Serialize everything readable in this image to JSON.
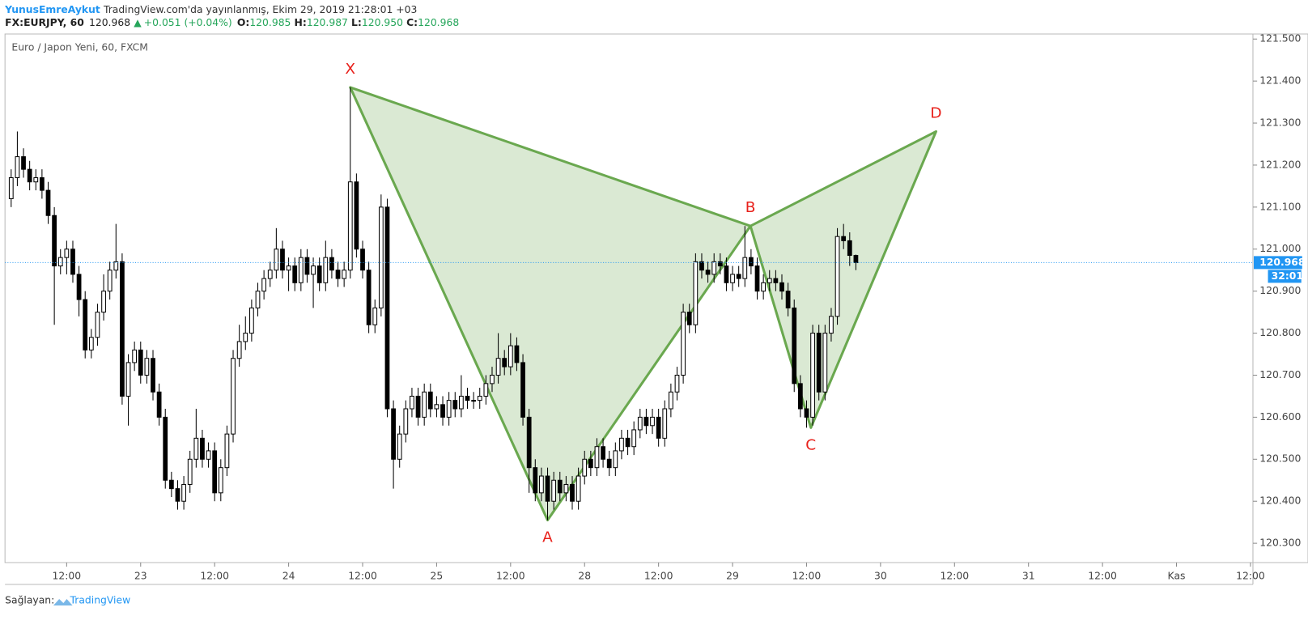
{
  "header": {
    "author": "YunusEmreAykut",
    "published": "TradingView.com'da yayınlanmış, Ekim 29, 2019 21:28:01 +03",
    "symbol": "FX:EURJPY, 60",
    "price": "120.968",
    "arrow": "▲",
    "change": "+0.051 (+0.04%)",
    "o_label": "O:",
    "o": "120.985",
    "h_label": "H:",
    "h": "120.987",
    "l_label": "L:",
    "l": "120.950",
    "c_label": "C:",
    "c": "120.968"
  },
  "footer": {
    "prefix": "Sağlayan:",
    "brand": "TradingView"
  },
  "chart_data": {
    "type": "candlestick",
    "title": "Euro / Japon Yeni, 60, FXCM",
    "up_color": "#ffffff",
    "down_color": "#000000",
    "pattern_color": "#6aa84f",
    "label_color": "#e8211b",
    "x": [
      0,
      1,
      2,
      3,
      4,
      5,
      6,
      7,
      8,
      9,
      10,
      11,
      12,
      13,
      14,
      15,
      16,
      17,
      18,
      19,
      20,
      21,
      22,
      23,
      24,
      25,
      26,
      27,
      28,
      29,
      30,
      31,
      32,
      33,
      34,
      35,
      36,
      37,
      38,
      39,
      40,
      41,
      42,
      43,
      44,
      45,
      46,
      47,
      48,
      49,
      50,
      51,
      52,
      53,
      54,
      55,
      56,
      57,
      58,
      59,
      60,
      61,
      62,
      63,
      64,
      65,
      66,
      67,
      68,
      69,
      70,
      71,
      72,
      73,
      74,
      75,
      76,
      77,
      78,
      79,
      80,
      81,
      82,
      83,
      84,
      85,
      86,
      87,
      88,
      89,
      90,
      91,
      92,
      93,
      94,
      95,
      96,
      97,
      98,
      99,
      100,
      101,
      102,
      103,
      104,
      105,
      106,
      107,
      108,
      109,
      110,
      111,
      112,
      113,
      114,
      115,
      116,
      117,
      118,
      119,
      120,
      121,
      122,
      123,
      124,
      125,
      126,
      127,
      128,
      129,
      130,
      131,
      132,
      133,
      134,
      135,
      136,
      137
    ],
    "open": [
      121.12,
      121.17,
      121.22,
      121.19,
      121.16,
      121.17,
      121.14,
      121.08,
      120.96,
      120.98,
      121.0,
      120.94,
      120.88,
      120.76,
      120.79,
      120.85,
      120.9,
      120.95,
      120.97,
      120.65,
      120.73,
      120.76,
      120.7,
      120.74,
      120.66,
      120.6,
      120.45,
      120.43,
      120.4,
      120.44,
      120.5,
      120.55,
      120.5,
      120.52,
      120.42,
      120.48,
      120.56,
      120.74,
      120.78,
      120.8,
      120.86,
      120.9,
      120.93,
      120.95,
      121.0,
      120.95,
      120.96,
      120.92,
      120.98,
      120.94,
      120.96,
      120.92,
      120.98,
      120.95,
      120.93,
      120.95,
      121.16,
      121.0,
      120.95,
      120.82,
      120.86,
      121.1,
      120.62,
      120.5,
      120.56,
      120.62,
      120.65,
      120.6,
      120.66,
      120.62,
      120.63,
      120.6,
      120.64,
      120.62,
      120.65,
      120.64,
      120.64,
      120.65,
      120.68,
      120.7,
      120.74,
      120.72,
      120.77,
      120.73,
      120.6,
      120.48,
      120.42,
      120.46,
      120.4,
      120.45,
      120.42,
      120.44,
      120.4,
      120.46,
      120.5,
      120.48,
      120.53,
      120.5,
      120.48,
      120.52,
      120.55,
      120.53,
      120.57,
      120.6,
      120.58,
      120.6,
      120.55,
      120.62,
      120.66,
      120.7,
      120.85,
      120.82,
      120.97,
      120.95,
      120.94,
      120.97,
      120.96,
      120.92,
      120.94,
      120.93,
      120.98,
      120.96,
      120.9,
      120.92,
      120.93,
      120.92,
      120.9,
      120.86,
      120.68,
      120.62,
      120.6,
      120.8,
      120.66,
      120.8,
      120.84,
      121.03,
      121.02,
      120.985
    ],
    "high": [
      121.19,
      121.28,
      121.24,
      121.21,
      121.19,
      121.19,
      121.16,
      121.1,
      121.0,
      121.02,
      121.02,
      120.96,
      120.9,
      120.81,
      120.87,
      120.94,
      120.97,
      121.06,
      120.99,
      120.75,
      120.78,
      120.78,
      120.76,
      120.76,
      120.68,
      120.62,
      120.47,
      120.45,
      120.46,
      120.52,
      120.62,
      120.57,
      120.54,
      120.54,
      120.5,
      120.58,
      120.76,
      120.82,
      120.84,
      120.88,
      120.92,
      120.95,
      120.97,
      121.05,
      121.02,
      120.98,
      120.98,
      121.0,
      121.0,
      120.98,
      120.98,
      121.02,
      121.0,
      120.97,
      120.97,
      121.385,
      121.18,
      121.02,
      120.97,
      120.88,
      121.13,
      121.12,
      120.64,
      120.58,
      120.64,
      120.67,
      120.67,
      120.68,
      120.68,
      120.65,
      120.65,
      120.66,
      120.66,
      120.7,
      120.67,
      120.66,
      120.67,
      120.7,
      120.72,
      120.8,
      120.76,
      120.8,
      120.79,
      120.75,
      120.62,
      120.5,
      120.48,
      120.48,
      120.47,
      120.47,
      120.46,
      120.46,
      120.48,
      120.52,
      120.52,
      120.55,
      120.55,
      120.52,
      120.54,
      120.57,
      120.57,
      120.59,
      120.62,
      120.62,
      120.62,
      120.62,
      120.64,
      120.68,
      120.72,
      120.87,
      120.87,
      120.99,
      120.99,
      120.97,
      120.99,
      120.99,
      120.98,
      120.96,
      120.96,
      121.055,
      121.0,
      120.98,
      120.94,
      120.95,
      120.95,
      120.94,
      120.92,
      120.88,
      120.7,
      120.64,
      120.82,
      120.82,
      120.82,
      120.86,
      121.05,
      121.06,
      121.04,
      120.987
    ],
    "low": [
      121.1,
      121.15,
      121.17,
      121.14,
      121.14,
      121.12,
      121.06,
      120.82,
      120.94,
      120.94,
      120.92,
      120.84,
      120.74,
      120.74,
      120.77,
      120.83,
      120.88,
      120.93,
      120.63,
      120.58,
      120.71,
      120.68,
      120.68,
      120.64,
      120.58,
      120.43,
      120.41,
      120.38,
      120.38,
      120.42,
      120.48,
      120.48,
      120.48,
      120.4,
      120.4,
      120.46,
      120.54,
      120.72,
      120.76,
      120.78,
      120.84,
      120.88,
      120.91,
      120.93,
      120.93,
      120.9,
      120.9,
      120.9,
      120.92,
      120.86,
      120.9,
      120.9,
      120.93,
      120.91,
      120.91,
      120.93,
      120.98,
      120.93,
      120.8,
      120.8,
      120.84,
      120.6,
      120.43,
      120.48,
      120.54,
      120.6,
      120.58,
      120.58,
      120.6,
      120.6,
      120.58,
      120.58,
      120.6,
      120.6,
      120.62,
      120.62,
      120.62,
      120.63,
      120.66,
      120.68,
      120.7,
      120.7,
      120.71,
      120.58,
      120.42,
      120.4,
      120.4,
      120.355,
      120.38,
      120.4,
      120.4,
      120.38,
      120.38,
      120.44,
      120.46,
      120.46,
      120.48,
      120.46,
      120.46,
      120.5,
      120.51,
      120.51,
      120.55,
      120.56,
      120.56,
      120.53,
      120.53,
      120.6,
      120.64,
      120.68,
      120.8,
      120.8,
      120.93,
      120.92,
      120.92,
      120.94,
      120.9,
      120.9,
      120.91,
      120.91,
      120.94,
      120.88,
      120.88,
      120.9,
      120.9,
      120.88,
      120.84,
      120.66,
      120.6,
      120.575,
      120.58,
      120.64,
      120.64,
      120.78,
      120.82,
      121.0,
      120.96,
      120.95
    ],
    "close": [
      121.17,
      121.22,
      121.19,
      121.16,
      121.17,
      121.14,
      121.08,
      120.96,
      120.98,
      121.0,
      120.94,
      120.88,
      120.76,
      120.79,
      120.85,
      120.9,
      120.95,
      120.97,
      120.65,
      120.73,
      120.76,
      120.7,
      120.74,
      120.66,
      120.6,
      120.45,
      120.43,
      120.4,
      120.44,
      120.5,
      120.55,
      120.5,
      120.52,
      120.42,
      120.48,
      120.56,
      120.74,
      120.78,
      120.8,
      120.86,
      120.9,
      120.93,
      120.95,
      121.0,
      120.95,
      120.96,
      120.92,
      120.98,
      120.94,
      120.96,
      120.92,
      120.98,
      120.95,
      120.93,
      120.95,
      121.16,
      121.0,
      120.95,
      120.82,
      120.86,
      121.1,
      120.62,
      120.5,
      120.56,
      120.62,
      120.65,
      120.6,
      120.66,
      120.62,
      120.63,
      120.6,
      120.64,
      120.62,
      120.65,
      120.64,
      120.64,
      120.65,
      120.68,
      120.7,
      120.74,
      120.72,
      120.77,
      120.73,
      120.6,
      120.48,
      120.42,
      120.46,
      120.4,
      120.45,
      120.42,
      120.44,
      120.4,
      120.46,
      120.5,
      120.48,
      120.53,
      120.5,
      120.48,
      120.52,
      120.55,
      120.53,
      120.57,
      120.6,
      120.58,
      120.6,
      120.55,
      120.62,
      120.66,
      120.7,
      120.85,
      120.82,
      120.97,
      120.95,
      120.94,
      120.97,
      120.96,
      120.92,
      120.94,
      120.93,
      120.98,
      120.96,
      120.9,
      120.92,
      120.93,
      120.92,
      120.9,
      120.86,
      120.68,
      120.62,
      120.6,
      120.8,
      120.66,
      120.8,
      120.84,
      121.03,
      121.02,
      120.985,
      120.968
    ],
    "xlim": [
      -1,
      201.4
    ],
    "ylim": [
      120.254,
      121.512
    ],
    "xticks": [
      {
        "value": 9,
        "label": "12:00"
      },
      {
        "value": 21,
        "label": "23"
      },
      {
        "value": 33,
        "label": "12:00"
      },
      {
        "value": 45,
        "label": "24"
      },
      {
        "value": 57,
        "label": "12:00"
      },
      {
        "value": 69,
        "label": "25"
      },
      {
        "value": 81,
        "label": "12:00"
      },
      {
        "value": 93,
        "label": "28"
      },
      {
        "value": 105,
        "label": "12:00"
      },
      {
        "value": 117,
        "label": "29"
      },
      {
        "value": 129,
        "label": "12:00"
      },
      {
        "value": 141,
        "label": "30"
      },
      {
        "value": 153,
        "label": "12:00"
      },
      {
        "value": 165,
        "label": "31"
      },
      {
        "value": 177,
        "label": "12:00"
      },
      {
        "value": 189,
        "label": "Kas"
      },
      {
        "value": 201,
        "label": "12:00"
      }
    ],
    "yticks": [
      {
        "value": 121.5,
        "label": "121.500"
      },
      {
        "value": 121.4,
        "label": "121.400"
      },
      {
        "value": 121.3,
        "label": "121.300"
      },
      {
        "value": 121.2,
        "label": "121.200"
      },
      {
        "value": 121.1,
        "label": "121.100"
      },
      {
        "value": 121.0,
        "label": "121.000"
      },
      {
        "value": 120.9,
        "label": "120.900"
      },
      {
        "value": 120.8,
        "label": "120.800"
      },
      {
        "value": 120.7,
        "label": "120.700"
      },
      {
        "value": 120.6,
        "label": "120.600"
      },
      {
        "value": 120.5,
        "label": "120.500"
      },
      {
        "value": 120.4,
        "label": "120.400"
      },
      {
        "value": 120.3,
        "label": "120.300"
      }
    ],
    "last_price": 120.968,
    "last_price_color": "#2196f3",
    "countdown": "32:01",
    "pattern": [
      {
        "label": "X",
        "x": 55,
        "y": 121.385
      },
      {
        "label": "A",
        "x": 87,
        "y": 120.355
      },
      {
        "label": "B",
        "x": 119.9,
        "y": 121.055
      },
      {
        "label": "C",
        "x": 129.7,
        "y": 120.575
      },
      {
        "label": "D",
        "x": 150,
        "y": 121.28
      }
    ]
  }
}
